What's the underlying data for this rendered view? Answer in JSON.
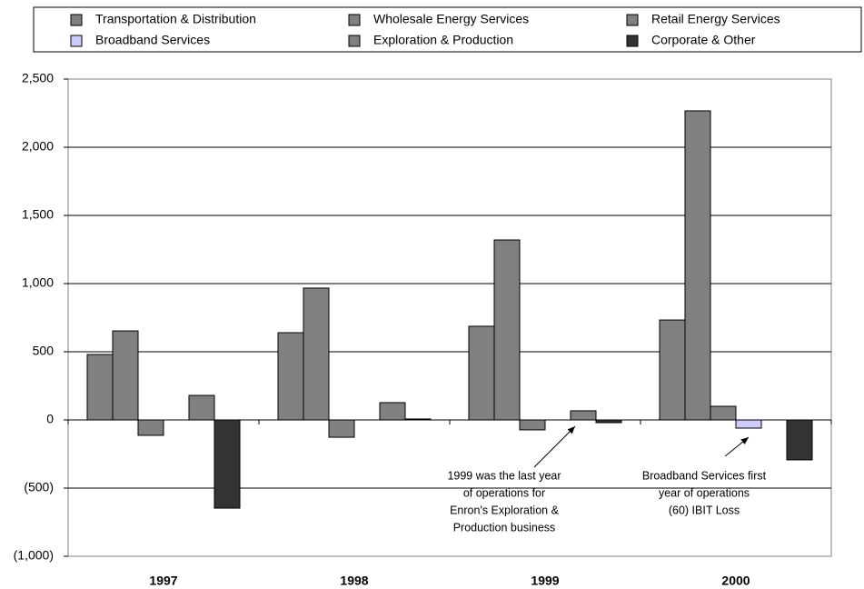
{
  "chart_data": {
    "type": "bar",
    "categories": [
      "1997",
      "1998",
      "1999",
      "2000"
    ],
    "series": [
      {
        "name": "Transportation & Distribution",
        "color": "#808080",
        "values": [
          480,
          640,
          687,
          733
        ]
      },
      {
        "name": "Wholesale Energy Services",
        "color": "#808080",
        "values": [
          653,
          967,
          1320,
          2267
        ]
      },
      {
        "name": "Retail Energy Services",
        "color": "#808080",
        "values": [
          -113,
          -127,
          -73,
          100
        ]
      },
      {
        "name": "Broadband Services",
        "color": "#ccccff",
        "values": [
          null,
          null,
          null,
          -60
        ]
      },
      {
        "name": "Exploration & Production",
        "color": "#808080",
        "values": [
          180,
          127,
          67,
          null
        ]
      },
      {
        "name": "Corporate & Other",
        "color": "#333333",
        "values": [
          -647,
          7,
          -20,
          -293
        ]
      }
    ],
    "ylim": [
      -1000,
      2500
    ],
    "yticks": [
      {
        "value": -1000,
        "label": "(1,000)"
      },
      {
        "value": -500,
        "label": "(500)"
      },
      0,
      500,
      {
        "value": 1000,
        "label": "1,000"
      },
      {
        "value": 1500,
        "label": "1,500"
      },
      {
        "value": 2000,
        "label": "2,000"
      },
      {
        "value": 2500,
        "label": "2,500"
      }
    ],
    "grid": true,
    "legend": "top",
    "annotations": [
      {
        "lines": [
          "1999 was the last year",
          "of operations for",
          "Enron's Exploration &",
          "Production business"
        ]
      },
      {
        "lines": [
          "Broadband Services first",
          "year of operations",
          "(60) IBIT Loss"
        ]
      }
    ]
  }
}
